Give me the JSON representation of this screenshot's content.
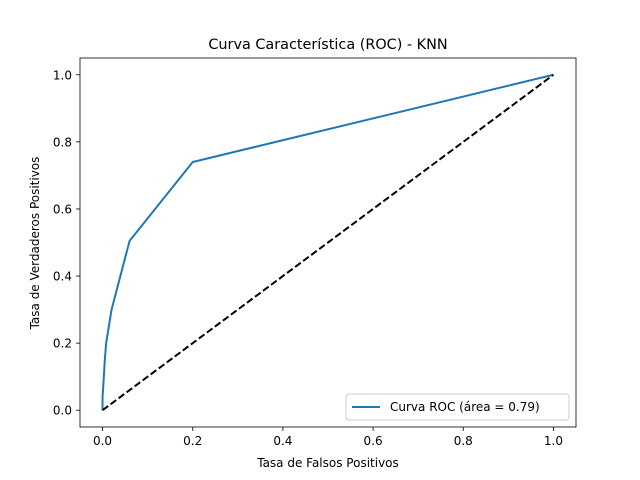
{
  "chart_data": {
    "type": "line",
    "title": "Curva Característica (ROC) - KNN",
    "xlabel": "Tasa de Falsos Positivos",
    "ylabel": "Tasa de Verdaderos Positivos",
    "xlim": [
      -0.05,
      1.05
    ],
    "ylim": [
      -0.05,
      1.05
    ],
    "xticks": [
      0.0,
      0.2,
      0.4,
      0.6,
      0.8,
      1.0
    ],
    "yticks": [
      0.0,
      0.2,
      0.4,
      0.6,
      0.8,
      1.0
    ],
    "xtick_labels": [
      "0.0",
      "0.2",
      "0.4",
      "0.6",
      "0.8",
      "1.0"
    ],
    "ytick_labels": [
      "0.0",
      "0.2",
      "0.4",
      "0.6",
      "0.8",
      "1.0"
    ],
    "grid": false,
    "legend_position": "lower-right",
    "series": [
      {
        "name": "Curva ROC (área = 0.79)",
        "color": "#1f77b4",
        "style": "solid",
        "x": [
          0.0,
          0.0,
          0.002,
          0.005,
          0.008,
          0.02,
          0.06,
          0.2,
          1.0
        ],
        "y": [
          0.0,
          0.04,
          0.08,
          0.15,
          0.2,
          0.3,
          0.505,
          0.74,
          1.0
        ]
      },
      {
        "color": "#000000",
        "style": "dashed",
        "x": [
          0.0,
          1.0
        ],
        "y": [
          0.0,
          1.0
        ]
      }
    ]
  }
}
